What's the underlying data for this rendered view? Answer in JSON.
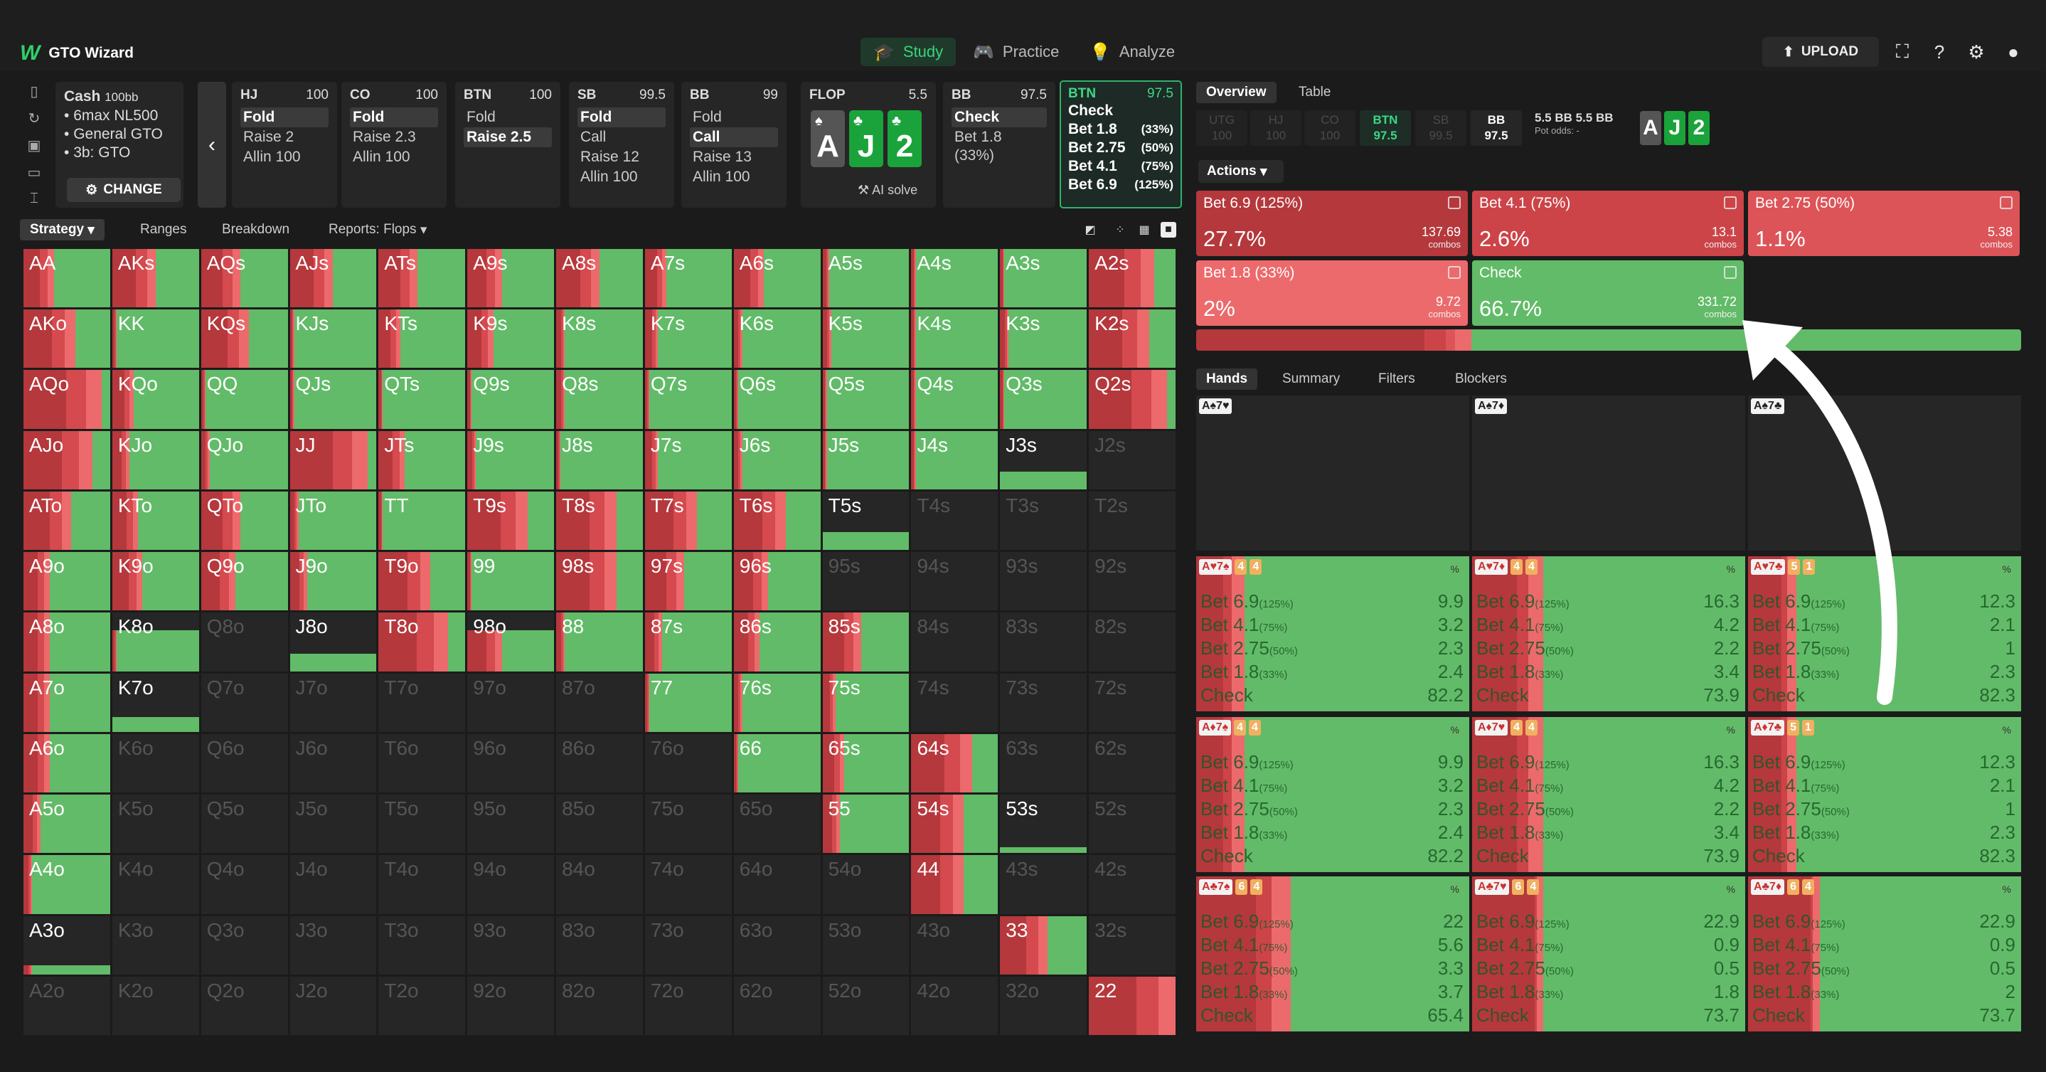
{
  "app": {
    "name": "GTO Wizard"
  },
  "nav": [
    {
      "label": "Study",
      "icon": "graduation-cap-icon",
      "active": true
    },
    {
      "label": "Practice",
      "icon": "gamepad-icon"
    },
    {
      "label": "Analyze",
      "icon": "lightbulb-icon"
    }
  ],
  "toolbar": {
    "upload": "UPLOAD"
  },
  "game": {
    "type": "Cash",
    "stack": "100bb",
    "lines": [
      "6max NL500",
      "General GTO",
      "3b: GTO"
    ],
    "change": "CHANGE"
  },
  "positions": [
    {
      "name": "HJ",
      "stack": "100",
      "actions": [
        {
          "t": "Fold",
          "sel": true
        },
        {
          "t": "Raise 2"
        },
        {
          "t": "Allin 100"
        }
      ]
    },
    {
      "name": "CO",
      "stack": "100",
      "actions": [
        {
          "t": "Fold",
          "sel": true
        },
        {
          "t": "Raise 2.3"
        },
        {
          "t": "Allin 100"
        }
      ]
    },
    {
      "name": "BTN",
      "stack": "100",
      "actions": [
        {
          "t": "Fold"
        },
        {
          "t": "Raise 2.5",
          "sel": true
        }
      ]
    },
    {
      "name": "SB",
      "stack": "99.5",
      "actions": [
        {
          "t": "Fold",
          "sel": true
        },
        {
          "t": "Call"
        },
        {
          "t": "Raise 12"
        },
        {
          "t": "Allin 100"
        }
      ]
    },
    {
      "name": "BB",
      "stack": "99",
      "actions": [
        {
          "t": "Fold"
        },
        {
          "t": "Call",
          "sel": true
        },
        {
          "t": "Raise 13"
        },
        {
          "t": "Allin 100"
        }
      ]
    }
  ],
  "flop": {
    "label": "FLOP",
    "pot": "5.5",
    "cards": [
      {
        "rank": "A",
        "suit": "♠",
        "color": "#555555"
      },
      {
        "rank": "J",
        "suit": "♣",
        "color": "#1aa33a"
      },
      {
        "rank": "2",
        "suit": "♣",
        "color": "#1aa33a"
      }
    ],
    "ai": "AI solve"
  },
  "bbpanel": {
    "name": "BB",
    "stack": "97.5",
    "actions": [
      {
        "t": "Check",
        "sel": true
      },
      {
        "t": "Bet 1.8 (33%)"
      }
    ]
  },
  "btnpanel": {
    "name": "BTN",
    "stack": "97.5",
    "actions": [
      {
        "t": "Check",
        "p": ""
      },
      {
        "t": "Bet 1.8",
        "p": "(33%)"
      },
      {
        "t": "Bet 2.75",
        "p": "(50%)"
      },
      {
        "t": "Bet 4.1",
        "p": "(75%)"
      },
      {
        "t": "Bet 6.9",
        "p": "(125%)"
      }
    ]
  },
  "strategy_tabs": [
    "Strategy",
    "Ranges",
    "Breakdown",
    "Reports: Flops"
  ],
  "grid": {
    "labels": [
      [
        "AA",
        "AKs",
        "AQs",
        "AJs",
        "ATs",
        "A9s",
        "A8s",
        "A7s",
        "A6s",
        "A5s",
        "A4s",
        "A3s",
        "A2s"
      ],
      [
        "AKo",
        "KK",
        "KQs",
        "KJs",
        "KTs",
        "K9s",
        "K8s",
        "K7s",
        "K6s",
        "K5s",
        "K4s",
        "K3s",
        "K2s"
      ],
      [
        "AQo",
        "KQo",
        "QQ",
        "QJs",
        "QTs",
        "Q9s",
        "Q8s",
        "Q7s",
        "Q6s",
        "Q5s",
        "Q4s",
        "Q3s",
        "Q2s"
      ],
      [
        "AJo",
        "KJo",
        "QJo",
        "JJ",
        "JTs",
        "J9s",
        "J8s",
        "J7s",
        "J6s",
        "J5s",
        "J4s",
        "J3s",
        "J2s"
      ],
      [
        "ATo",
        "KTo",
        "QTo",
        "JTo",
        "TT",
        "T9s",
        "T8s",
        "T7s",
        "T6s",
        "T5s",
        "T4s",
        "T3s",
        "T2s"
      ],
      [
        "A9o",
        "K9o",
        "Q9o",
        "J9o",
        "T9o",
        "99",
        "98s",
        "97s",
        "96s",
        "95s",
        "94s",
        "93s",
        "92s"
      ],
      [
        "A8o",
        "K8o",
        "Q8o",
        "J8o",
        "T8o",
        "98o",
        "88",
        "87s",
        "86s",
        "85s",
        "84s",
        "83s",
        "82s"
      ],
      [
        "A7o",
        "K7o",
        "Q7o",
        "J7o",
        "T7o",
        "97o",
        "87o",
        "77",
        "76s",
        "75s",
        "74s",
        "73s",
        "72s"
      ],
      [
        "A6o",
        "K6o",
        "Q6o",
        "J6o",
        "T6o",
        "96o",
        "86o",
        "76o",
        "66",
        "65s",
        "64s",
        "63s",
        "62s"
      ],
      [
        "A5o",
        "K5o",
        "Q5o",
        "J5o",
        "T5o",
        "95o",
        "85o",
        "75o",
        "65o",
        "55",
        "54s",
        "53s",
        "52s"
      ],
      [
        "A4o",
        "K4o",
        "Q4o",
        "J4o",
        "T4o",
        "94o",
        "84o",
        "74o",
        "64o",
        "54o",
        "44",
        "43s",
        "42s"
      ],
      [
        "A3o",
        "K3o",
        "Q3o",
        "J3o",
        "T3o",
        "93o",
        "83o",
        "73o",
        "63o",
        "53o",
        "43o",
        "33",
        "32s"
      ],
      [
        "A2o",
        "K2o",
        "Q2o",
        "J2o",
        "T2o",
        "92o",
        "82o",
        "72o",
        "62o",
        "52o",
        "42o",
        "32o",
        "22"
      ]
    ],
    "strategy_red_fraction": [
      [
        0.35,
        0.5,
        0.45,
        0.5,
        0.45,
        0.4,
        0.5,
        0.25,
        0.35,
        0.08,
        0.05,
        0.05,
        0.75
      ],
      [
        0.6,
        0.05,
        0.55,
        0.05,
        0.25,
        0.3,
        0.1,
        0.15,
        0.1,
        0.1,
        0.05,
        0.1,
        0.7
      ],
      [
        0.9,
        0.25,
        0.05,
        0.05,
        0.05,
        0.05,
        0.1,
        0.05,
        0.05,
        0.05,
        0.05,
        0.05,
        0.9
      ],
      [
        0.8,
        0.2,
        0.1,
        0.9,
        0.3,
        0.1,
        0.05,
        0.15,
        0.1,
        0.05,
        0.05,
        0,
        0
      ],
      [
        0.55,
        0.3,
        0.45,
        0.1,
        0.05,
        0.7,
        0.7,
        0.6,
        0.6,
        0,
        0,
        0,
        0
      ],
      [
        0.3,
        0.35,
        0.4,
        0.2,
        0.6,
        0.05,
        0.7,
        0.45,
        0.4,
        0,
        0,
        0,
        0
      ],
      [
        0.3,
        0.05,
        0,
        0,
        0.8,
        0.4,
        0.1,
        0.2,
        0.3,
        0.45,
        0,
        0,
        0
      ],
      [
        0.3,
        0,
        0,
        0,
        0,
        0,
        0,
        0.05,
        0.1,
        0.15,
        0,
        0,
        0
      ],
      [
        0.3,
        0,
        0,
        0,
        0,
        0,
        0,
        0,
        0.05,
        0.25,
        0.7,
        0,
        0
      ],
      [
        0.2,
        0,
        0,
        0,
        0,
        0,
        0,
        0,
        0,
        0.2,
        0.6,
        0,
        0
      ],
      [
        0.1,
        0,
        0,
        0,
        0,
        0,
        0,
        0,
        0,
        0,
        0.6,
        0,
        0
      ],
      [
        0.1,
        0,
        0,
        0,
        0,
        0,
        0,
        0,
        0,
        0,
        0,
        0.55,
        0
      ],
      [
        0,
        0,
        0,
        0,
        0,
        0,
        0,
        0,
        0,
        0,
        0,
        0,
        1
      ]
    ],
    "range_fraction": [
      [
        1,
        1,
        1,
        1,
        1,
        1,
        1,
        1,
        1,
        1,
        1,
        1,
        1
      ],
      [
        1,
        1,
        1,
        1,
        1,
        1,
        1,
        1,
        1,
        1,
        1,
        1,
        1
      ],
      [
        1,
        1,
        1,
        1,
        1,
        1,
        1,
        1,
        1,
        1,
        1,
        1,
        1
      ],
      [
        1,
        1,
        1,
        1,
        1,
        1,
        1,
        1,
        1,
        1,
        1,
        0.3,
        0
      ],
      [
        1,
        1,
        1,
        1,
        1,
        1,
        1,
        1,
        1,
        0.3,
        0,
        0,
        0
      ],
      [
        1,
        1,
        1,
        1,
        1,
        1,
        1,
        1,
        1,
        0,
        0,
        0,
        0
      ],
      [
        1,
        0.7,
        0,
        0.3,
        1,
        0.7,
        1,
        1,
        1,
        1,
        0,
        0,
        0
      ],
      [
        1,
        0.25,
        0,
        0,
        0,
        0,
        0,
        1,
        1,
        1,
        0,
        0,
        0
      ],
      [
        1,
        0,
        0,
        0,
        0,
        0,
        0,
        0,
        1,
        1,
        1,
        0,
        0
      ],
      [
        1,
        0,
        0,
        0,
        0,
        0,
        0,
        0,
        0,
        1,
        1,
        0.1,
        0
      ],
      [
        1,
        0,
        0,
        0,
        0,
        0,
        0,
        0,
        0,
        0,
        1,
        0,
        0
      ],
      [
        0.15,
        0,
        0,
        0,
        0,
        0,
        0,
        0,
        0,
        0,
        0,
        1,
        0
      ],
      [
        0,
        0,
        0,
        0,
        0,
        0,
        0,
        0,
        0,
        0,
        0,
        0,
        1
      ]
    ]
  },
  "right_tabs": [
    "Overview",
    "Table"
  ],
  "seats": [
    {
      "n": "UTG",
      "s": "100"
    },
    {
      "n": "HJ",
      "s": "100"
    },
    {
      "n": "CO",
      "s": "100"
    },
    {
      "n": "BTN",
      "s": "97.5"
    },
    {
      "n": "SB",
      "s": "99.5"
    },
    {
      "n": "BB",
      "s": "97.5"
    }
  ],
  "pot": {
    "line1": "5.5 BB  5.5 BB",
    "line2": "Pot odds:  -"
  },
  "actions_label": "Actions",
  "actions": [
    {
      "name": "Bet 6.9 (125%)",
      "pct": "27.7%",
      "combos": "137.69",
      "color": "#b5383c"
    },
    {
      "name": "Bet 4.1 (75%)",
      "pct": "2.6%",
      "combos": "13.1",
      "color": "#cc4448"
    },
    {
      "name": "Bet 2.75 (50%)",
      "pct": "1.1%",
      "combos": "5.38",
      "color": "#dc5458"
    },
    {
      "name": "Bet 1.8 (33%)",
      "pct": "2%",
      "combos": "9.72",
      "color": "#ec6a6c"
    },
    {
      "name": "Check",
      "pct": "66.7%",
      "combos": "331.72",
      "color": "#62bb68"
    }
  ],
  "combos_word": "combos",
  "freqbar": [
    {
      "w": 27.7,
      "c": "#b5383c"
    },
    {
      "w": 2.6,
      "c": "#cc4448"
    },
    {
      "w": 1.1,
      "c": "#dc5458"
    },
    {
      "w": 2,
      "c": "#ec6a6c"
    },
    {
      "w": 66.6,
      "c": "#62bb68"
    }
  ],
  "hands_tabs": [
    "Hands",
    "Summary",
    "Filters",
    "Blockers"
  ],
  "combo_rows": [
    "Bet 6.9",
    "Bet 4.1",
    "Bet 2.75",
    "Bet 1.8",
    "Check"
  ],
  "combo_pcts": [
    "(125%)",
    "(75%)",
    "(50%)",
    "(33%)",
    ""
  ],
  "combo_header": [
    {
      "h": "A♠7♥"
    },
    {
      "h": "A♠7♦"
    },
    {
      "h": "A♠7♣"
    }
  ],
  "combos": [
    {
      "cards": "A♥7♠",
      "b1": "4",
      "b2": "4",
      "vals": [
        "9.9",
        "3.2",
        "2.3",
        "2.4",
        "82.2"
      ]
    },
    {
      "cards": "A♥7♦",
      "b1": "4",
      "b2": "4",
      "vals": [
        "16.3",
        "4.2",
        "2.2",
        "3.4",
        "73.9"
      ]
    },
    {
      "cards": "A♥7♣",
      "b1": "5",
      "b2": "1",
      "vals": [
        "12.3",
        "2.1",
        "1",
        "2.3",
        "82.3"
      ]
    },
    {
      "cards": "A♦7♠",
      "b1": "4",
      "b2": "4",
      "vals": [
        "9.9",
        "3.2",
        "2.3",
        "2.4",
        "82.2"
      ]
    },
    {
      "cards": "A♦7♥",
      "b1": "4",
      "b2": "4",
      "vals": [
        "16.3",
        "4.2",
        "2.2",
        "3.4",
        "73.9"
      ]
    },
    {
      "cards": "A♦7♣",
      "b1": "5",
      "b2": "1",
      "vals": [
        "12.3",
        "2.1",
        "1",
        "2.3",
        "82.3"
      ]
    },
    {
      "cards": "A♣7♠",
      "b1": "6",
      "b2": "4",
      "vals": [
        "22",
        "5.6",
        "3.3",
        "3.7",
        "65.4"
      ]
    },
    {
      "cards": "A♣7♥",
      "b1": "6",
      "b2": "4",
      "vals": [
        "22.9",
        "0.9",
        "0.5",
        "1.8",
        "73.7"
      ]
    },
    {
      "cards": "A♣7♦",
      "b1": "6",
      "b2": "4",
      "vals": [
        "22.9",
        "0.9",
        "0.5",
        "2",
        "73.7"
      ]
    }
  ]
}
